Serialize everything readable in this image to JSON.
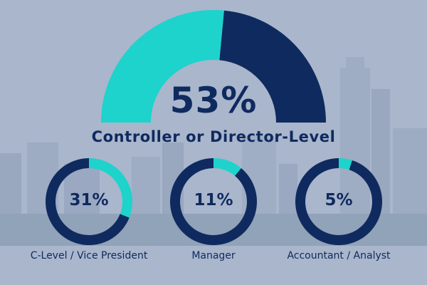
{
  "chart_data": [
    {
      "type": "pie",
      "style": "semi-donut",
      "value_label": "53%",
      "value": 53,
      "label": "Controller or Director-Level",
      "colors": {
        "share": "#1dd3cc",
        "remainder": "#0f2a5e"
      }
    },
    {
      "type": "pie",
      "style": "donut",
      "value_label": "31%",
      "value": 31,
      "label": "C-Level / Vice President",
      "colors": {
        "share": "#1dd3cc",
        "remainder": "#0f2a5e"
      }
    },
    {
      "type": "pie",
      "style": "donut",
      "value_label": "11%",
      "value": 11,
      "label": "Manager",
      "colors": {
        "share": "#1dd3cc",
        "remainder": "#0f2a5e"
      }
    },
    {
      "type": "pie",
      "style": "donut",
      "value_label": "5%",
      "value": 5,
      "label": "Accountant / Analyst",
      "colors": {
        "share": "#1dd3cc",
        "remainder": "#0f2a5e"
      }
    }
  ],
  "colors": {
    "background": "#a9b6cc",
    "text": "#0f2a5e"
  }
}
